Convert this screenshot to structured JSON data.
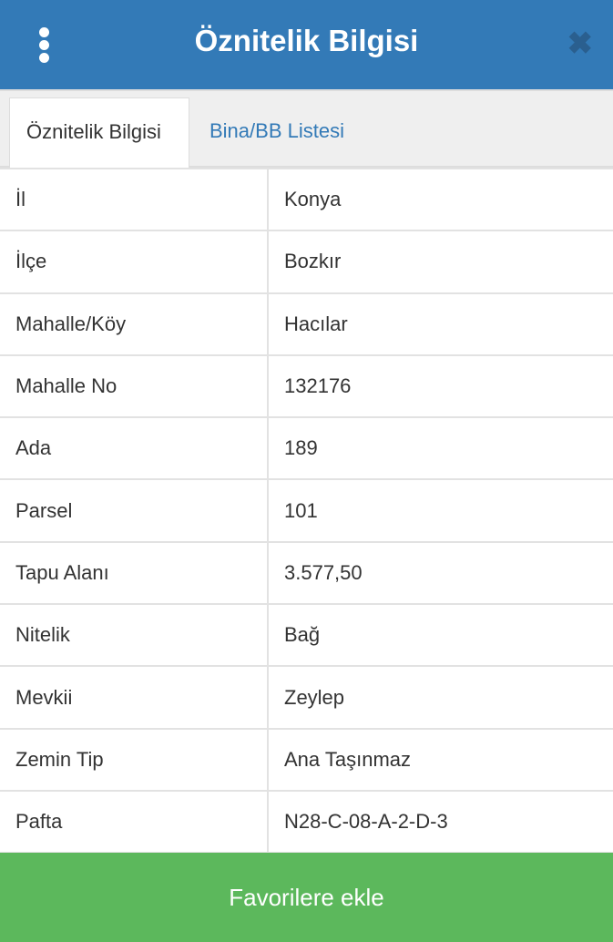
{
  "header": {
    "title": "Öznitelik Bilgisi",
    "menu_icon": "vertical-dots-icon",
    "close_icon": "close-icon"
  },
  "tabs": [
    {
      "label": "Öznitelik Bilgisi",
      "active": true
    },
    {
      "label": "Bina/BB Listesi",
      "active": false
    }
  ],
  "rows": [
    {
      "label": "İl",
      "value": "Konya"
    },
    {
      "label": "İlçe",
      "value": "Bozkır"
    },
    {
      "label": "Mahalle/Köy",
      "value": "Hacılar"
    },
    {
      "label": "Mahalle No",
      "value": "132176"
    },
    {
      "label": "Ada",
      "value": "189"
    },
    {
      "label": "Parsel",
      "value": "101"
    },
    {
      "label": "Tapu Alanı",
      "value": "3.577,50"
    },
    {
      "label": "Nitelik",
      "value": "Bağ"
    },
    {
      "label": "Mevkii",
      "value": "Zeylep"
    },
    {
      "label": "Zemin Tip",
      "value": "Ana Taşınmaz"
    },
    {
      "label": "Pafta",
      "value": "N28-C-08-A-2-D-3"
    }
  ],
  "footer": {
    "button_label": "Favorilere ekle"
  },
  "colors": {
    "header": "#337ab7",
    "footer": "#5cb85c"
  }
}
